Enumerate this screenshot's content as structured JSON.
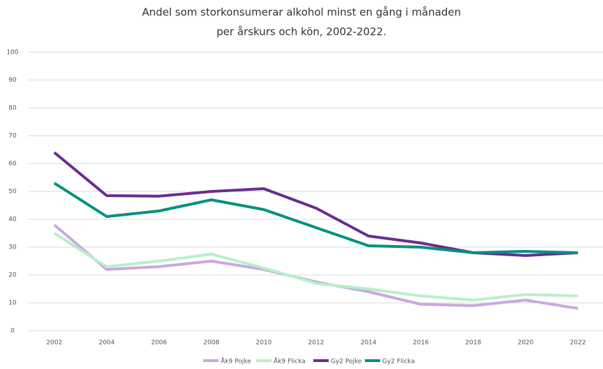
{
  "chart_data": {
    "type": "line",
    "title": [
      "Andel som storkonsumerar alkohol minst en gång i månaden",
      "per årskurs och kön, 2002-2022."
    ],
    "categories": [
      "2002",
      "2004",
      "2006",
      "2008",
      "2010",
      "2012",
      "2014",
      "2016",
      "2018",
      "2020",
      "2022"
    ],
    "series": [
      {
        "name": "Åk9 Pojke",
        "color": "#c9a8e0",
        "values": [
          38,
          22,
          23,
          25,
          22,
          17.5,
          14,
          9.5,
          9,
          11,
          8
        ]
      },
      {
        "name": "Åk9 Flicka",
        "color": "#b8f0c8",
        "values": [
          35,
          23,
          25,
          27.5,
          22.5,
          17,
          15,
          12.5,
          11,
          13,
          12.5
        ]
      },
      {
        "name": "Gy2 Pojke",
        "color": "#6a2c91",
        "values": [
          64,
          48.5,
          48.3,
          50,
          51,
          44,
          34,
          31.5,
          28,
          27,
          28
        ]
      },
      {
        "name": "Gy2 Flicka",
        "color": "#00917f",
        "values": [
          53,
          41,
          43,
          47,
          43.5,
          37,
          30.5,
          30,
          28,
          28.5,
          28
        ]
      }
    ],
    "ylim": [
      0,
      100
    ],
    "yticks": [
      0,
      10,
      20,
      30,
      40,
      50,
      60,
      70,
      80,
      90,
      100
    ],
    "grid": true,
    "legend": "bottom"
  }
}
